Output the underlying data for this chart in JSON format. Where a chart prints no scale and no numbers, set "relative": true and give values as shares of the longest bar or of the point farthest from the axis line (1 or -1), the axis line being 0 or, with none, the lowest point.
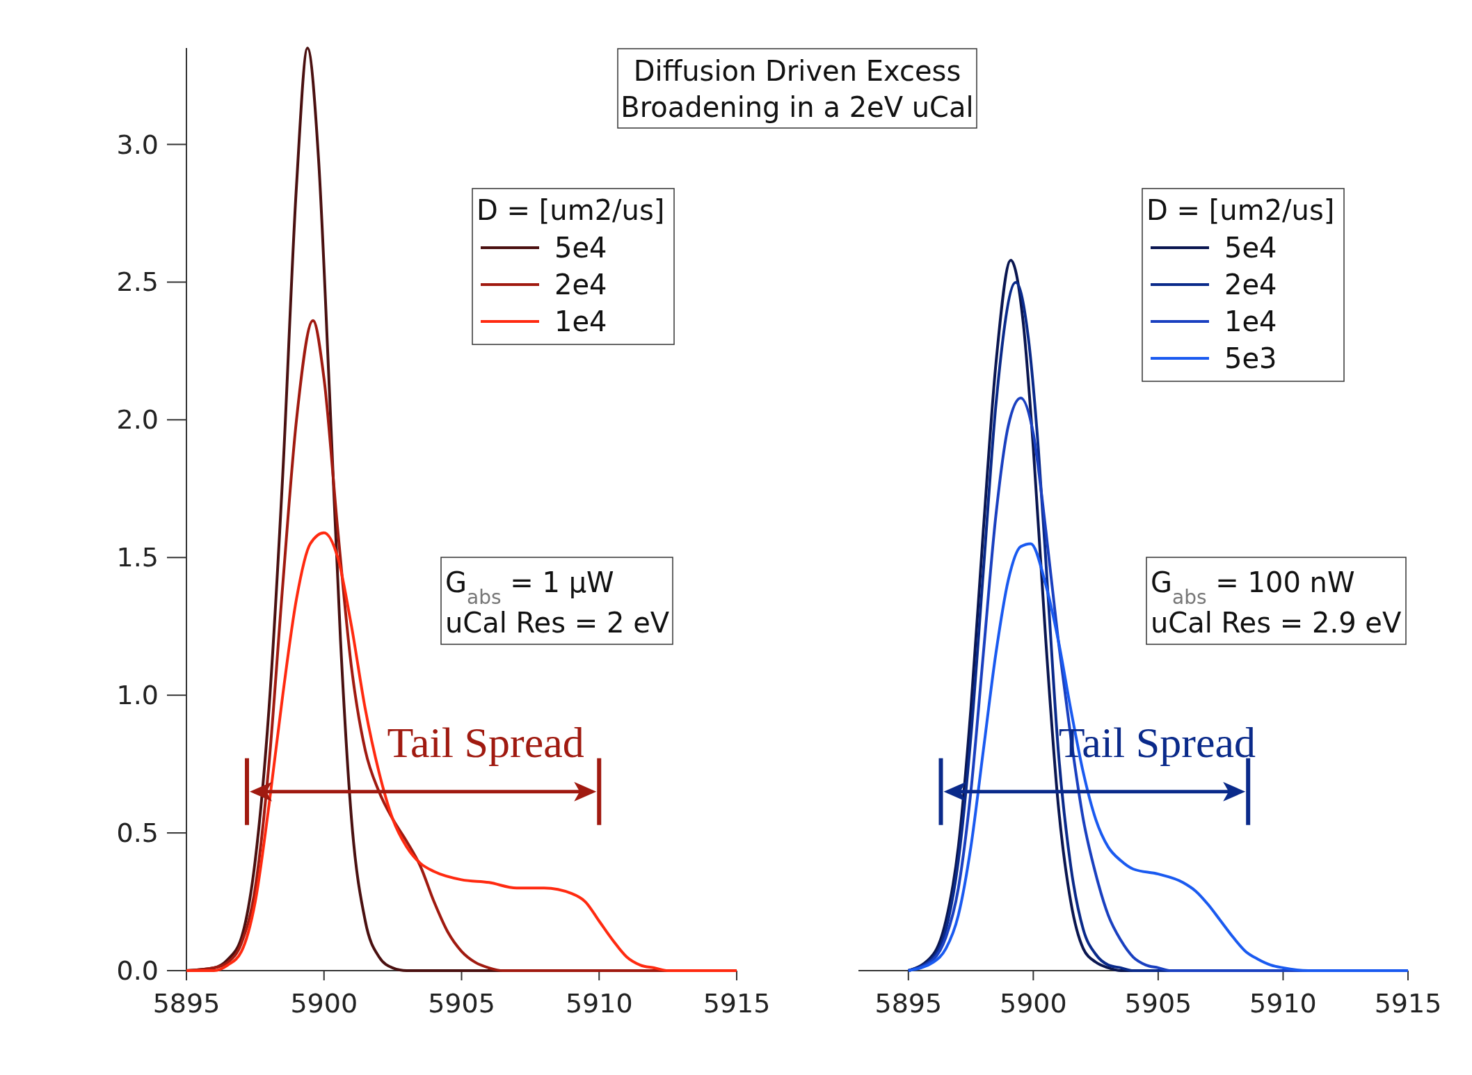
{
  "chart_data": [
    {
      "type": "line",
      "title": "Diffusion Driven Excess Broadening in a 2eV uCal",
      "legend_title": "D = [um2/us]",
      "legend": "top right",
      "xlim": [
        5895,
        5915
      ],
      "xticks": [
        5895,
        5900,
        5905,
        5910,
        5915
      ],
      "ylim": [
        0,
        3.35
      ],
      "yticks": [
        {
          "value": 0,
          "label": "0.0"
        },
        0.5,
        {
          "value": 1,
          "label": "1.0"
        },
        1.5,
        {
          "value": 2,
          "label": "2.0"
        },
        2.5,
        {
          "value": 3,
          "label": "3.0"
        }
      ],
      "grid": false,
      "annotations": [
        "G$_{abs}$ = 1 μW",
        "uCal Res = 2 eV",
        "Tail Spread"
      ],
      "series": [
        {
          "name": "5e4",
          "color": "#4a1010",
          "x": [
            5895,
            5896,
            5896.5,
            5897,
            5897.5,
            5898,
            5898.5,
            5899,
            5899.4,
            5899.8,
            5900.2,
            5900.6,
            5901,
            5901.5,
            5902,
            5902.5,
            5903,
            5915
          ],
          "values": [
            0,
            0.01,
            0.04,
            0.12,
            0.4,
            0.95,
            1.8,
            2.85,
            3.35,
            2.95,
            2.1,
            1.2,
            0.55,
            0.18,
            0.05,
            0.01,
            0,
            0
          ]
        },
        {
          "name": "2e4",
          "color": "#a01a10",
          "x": [
            5895,
            5896,
            5896.5,
            5897,
            5897.5,
            5898,
            5898.5,
            5899,
            5899.6,
            5900,
            5900.5,
            5901,
            5901.5,
            5902,
            5902.5,
            5903,
            5903.5,
            5904,
            5904.5,
            5905,
            5905.5,
            5906,
            5906.5,
            5915
          ],
          "values": [
            0,
            0.01,
            0.03,
            0.1,
            0.3,
            0.75,
            1.4,
            2.0,
            2.36,
            2.15,
            1.6,
            1.1,
            0.8,
            0.65,
            0.55,
            0.47,
            0.38,
            0.25,
            0.14,
            0.07,
            0.03,
            0.01,
            0,
            0
          ]
        },
        {
          "name": "1e4",
          "color": "#ff2a10",
          "x": [
            5895,
            5896,
            5896.5,
            5897,
            5897.5,
            5898,
            5898.5,
            5899,
            5899.5,
            5900,
            5900.5,
            5901,
            5901.5,
            5902,
            5902.5,
            5903,
            5903.5,
            5904,
            5905,
            5906,
            5907,
            5908,
            5909,
            5909.5,
            5910,
            5910.5,
            5911,
            5911.5,
            5912,
            5912.5,
            5915
          ],
          "values": [
            0,
            0,
            0.02,
            0.07,
            0.25,
            0.6,
            1.0,
            1.35,
            1.55,
            1.59,
            1.5,
            1.25,
            0.95,
            0.72,
            0.55,
            0.45,
            0.39,
            0.36,
            0.33,
            0.32,
            0.3,
            0.3,
            0.28,
            0.25,
            0.18,
            0.11,
            0.05,
            0.02,
            0.01,
            0,
            0
          ]
        }
      ]
    },
    {
      "type": "line",
      "legend_title": "D = [um2/us]",
      "legend": "top right",
      "xlim": [
        5893,
        5915
      ],
      "xticks": [
        5895,
        5900,
        5905,
        5910,
        5915
      ],
      "relative": true,
      "grid": false,
      "annotations": [
        "G$_{abs}$ = 100 nW",
        "uCal Res = 2.9 eV",
        "Tail Spread"
      ],
      "series": [
        {
          "name": "5e4",
          "color": "#0a1650",
          "x": [
            5895,
            5896,
            5896.5,
            5897,
            5897.5,
            5898,
            5898.5,
            5899.1,
            5899.6,
            5900,
            5900.5,
            5901,
            5901.5,
            5902,
            5902.5,
            5903,
            5903.5,
            5915
          ],
          "values": [
            0,
            0.023,
            0.07,
            0.174,
            0.368,
            0.62,
            0.853,
            1,
            0.911,
            0.736,
            0.465,
            0.233,
            0.097,
            0.031,
            0.012,
            0.004,
            0,
            0
          ]
        },
        {
          "name": "2e4",
          "color": "#0a2a8a",
          "x": [
            5895,
            5896,
            5896.5,
            5897,
            5897.5,
            5898,
            5898.5,
            5899.3,
            5899.8,
            5900.2,
            5900.6,
            5901,
            5901.5,
            5902,
            5902.5,
            5903,
            5903.5,
            5904,
            5915
          ],
          "values": [
            0,
            0.019,
            0.058,
            0.155,
            0.329,
            0.562,
            0.795,
            0.969,
            0.891,
            0.736,
            0.523,
            0.31,
            0.147,
            0.058,
            0.023,
            0.008,
            0.004,
            0,
            0
          ]
        },
        {
          "name": "1e4",
          "color": "#1a40c0",
          "x": [
            5895,
            5896,
            5896.5,
            5897,
            5897.5,
            5898,
            5898.5,
            5899,
            5899.5,
            5900,
            5900.5,
            5901,
            5901.5,
            5902,
            5902.5,
            5903,
            5903.5,
            5904,
            5904.5,
            5905,
            5905.5,
            5915
          ],
          "values": [
            0,
            0.016,
            0.047,
            0.116,
            0.252,
            0.446,
            0.64,
            0.767,
            0.806,
            0.756,
            0.62,
            0.465,
            0.329,
            0.213,
            0.136,
            0.078,
            0.043,
            0.019,
            0.008,
            0.004,
            0,
            0
          ]
        },
        {
          "name": "5e3",
          "color": "#1a5af0",
          "x": [
            5895,
            5896,
            5896.5,
            5897,
            5897.5,
            5898,
            5898.5,
            5899,
            5899.5,
            5899.9,
            5900.5,
            5901,
            5901.5,
            5902,
            5902.5,
            5903,
            5903.5,
            5904,
            5905,
            5906,
            5906.5,
            5907,
            5907.5,
            5908,
            5908.5,
            5909,
            5909.5,
            5910,
            5911,
            5915
          ],
          "values": [
            0,
            0.012,
            0.031,
            0.078,
            0.174,
            0.31,
            0.446,
            0.55,
            0.597,
            0.601,
            0.543,
            0.465,
            0.368,
            0.279,
            0.213,
            0.174,
            0.155,
            0.143,
            0.136,
            0.124,
            0.112,
            0.093,
            0.07,
            0.047,
            0.027,
            0.016,
            0.008,
            0.004,
            0,
            0
          ]
        }
      ]
    }
  ]
}
